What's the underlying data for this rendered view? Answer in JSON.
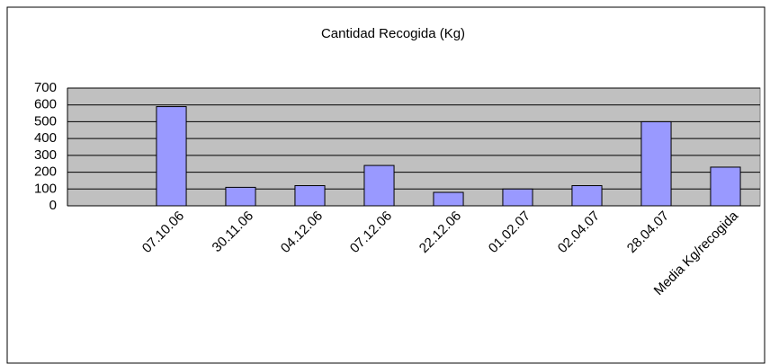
{
  "chart_data": {
    "type": "bar",
    "title": "Cantidad Recogida (Kg)",
    "categories": [
      null,
      "07.10.06",
      "30.11.06",
      "04.12.06",
      "07.12.06",
      "22.12.06",
      "01.02.07",
      "02.04.07",
      "28.04.07",
      "Media Kg/recogida"
    ],
    "values": [
      null,
      590,
      110,
      120,
      240,
      80,
      100,
      120,
      500,
      230
    ],
    "color": "#9999ff",
    "ylim": [
      0,
      700
    ],
    "yticks": [
      0,
      100,
      200,
      300,
      400,
      500,
      600,
      700
    ],
    "grid": true
  }
}
